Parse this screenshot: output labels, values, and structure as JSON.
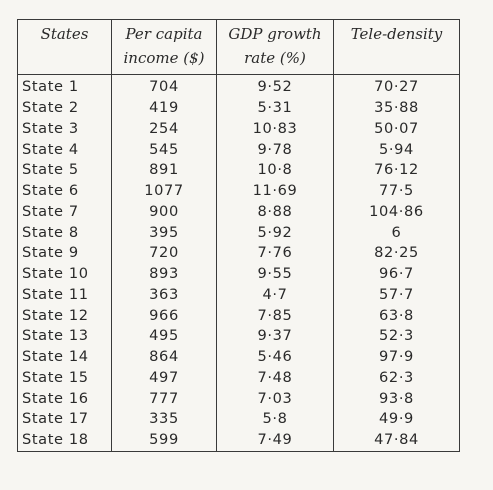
{
  "table": {
    "headers": {
      "states": "States",
      "income": [
        "Per capita",
        "income ($)"
      ],
      "gdp": [
        "GDP growth",
        "rate (%)"
      ],
      "tele": "Tele-density"
    },
    "rows": [
      [
        "State 1",
        "704",
        "9·52",
        "70·27"
      ],
      [
        "State 2",
        "419",
        "5·31",
        "35·88"
      ],
      [
        "State 3",
        "254",
        "10·83",
        "50·07"
      ],
      [
        "State 4",
        "545",
        "9·78",
        "5·94"
      ],
      [
        "State 5",
        "891",
        "10·8",
        "76·12"
      ],
      [
        "State 6",
        "1077",
        "11·69",
        "77·5"
      ],
      [
        "State 7",
        "900",
        "8·88",
        "104·86"
      ],
      [
        "State 8",
        "395",
        "5·92",
        "6"
      ],
      [
        "State 9",
        "720",
        "7·76",
        "82·25"
      ],
      [
        "State 10",
        "893",
        "9·55",
        "96·7"
      ],
      [
        "State 11",
        "363",
        "4·7",
        "57·7"
      ],
      [
        "State 12",
        "966",
        "7·85",
        "63·8"
      ],
      [
        "State 13",
        "495",
        "9·37",
        "52·3"
      ],
      [
        "State 14",
        "864",
        "5·46",
        "97·9"
      ],
      [
        "State 15",
        "497",
        "7·48",
        "62·3"
      ],
      [
        "State 16",
        "777",
        "7·03",
        "93·8"
      ],
      [
        "State 17",
        "335",
        "5·8",
        "49·9"
      ],
      [
        "State 18",
        "599",
        "7·49",
        "47·84"
      ]
    ]
  }
}
